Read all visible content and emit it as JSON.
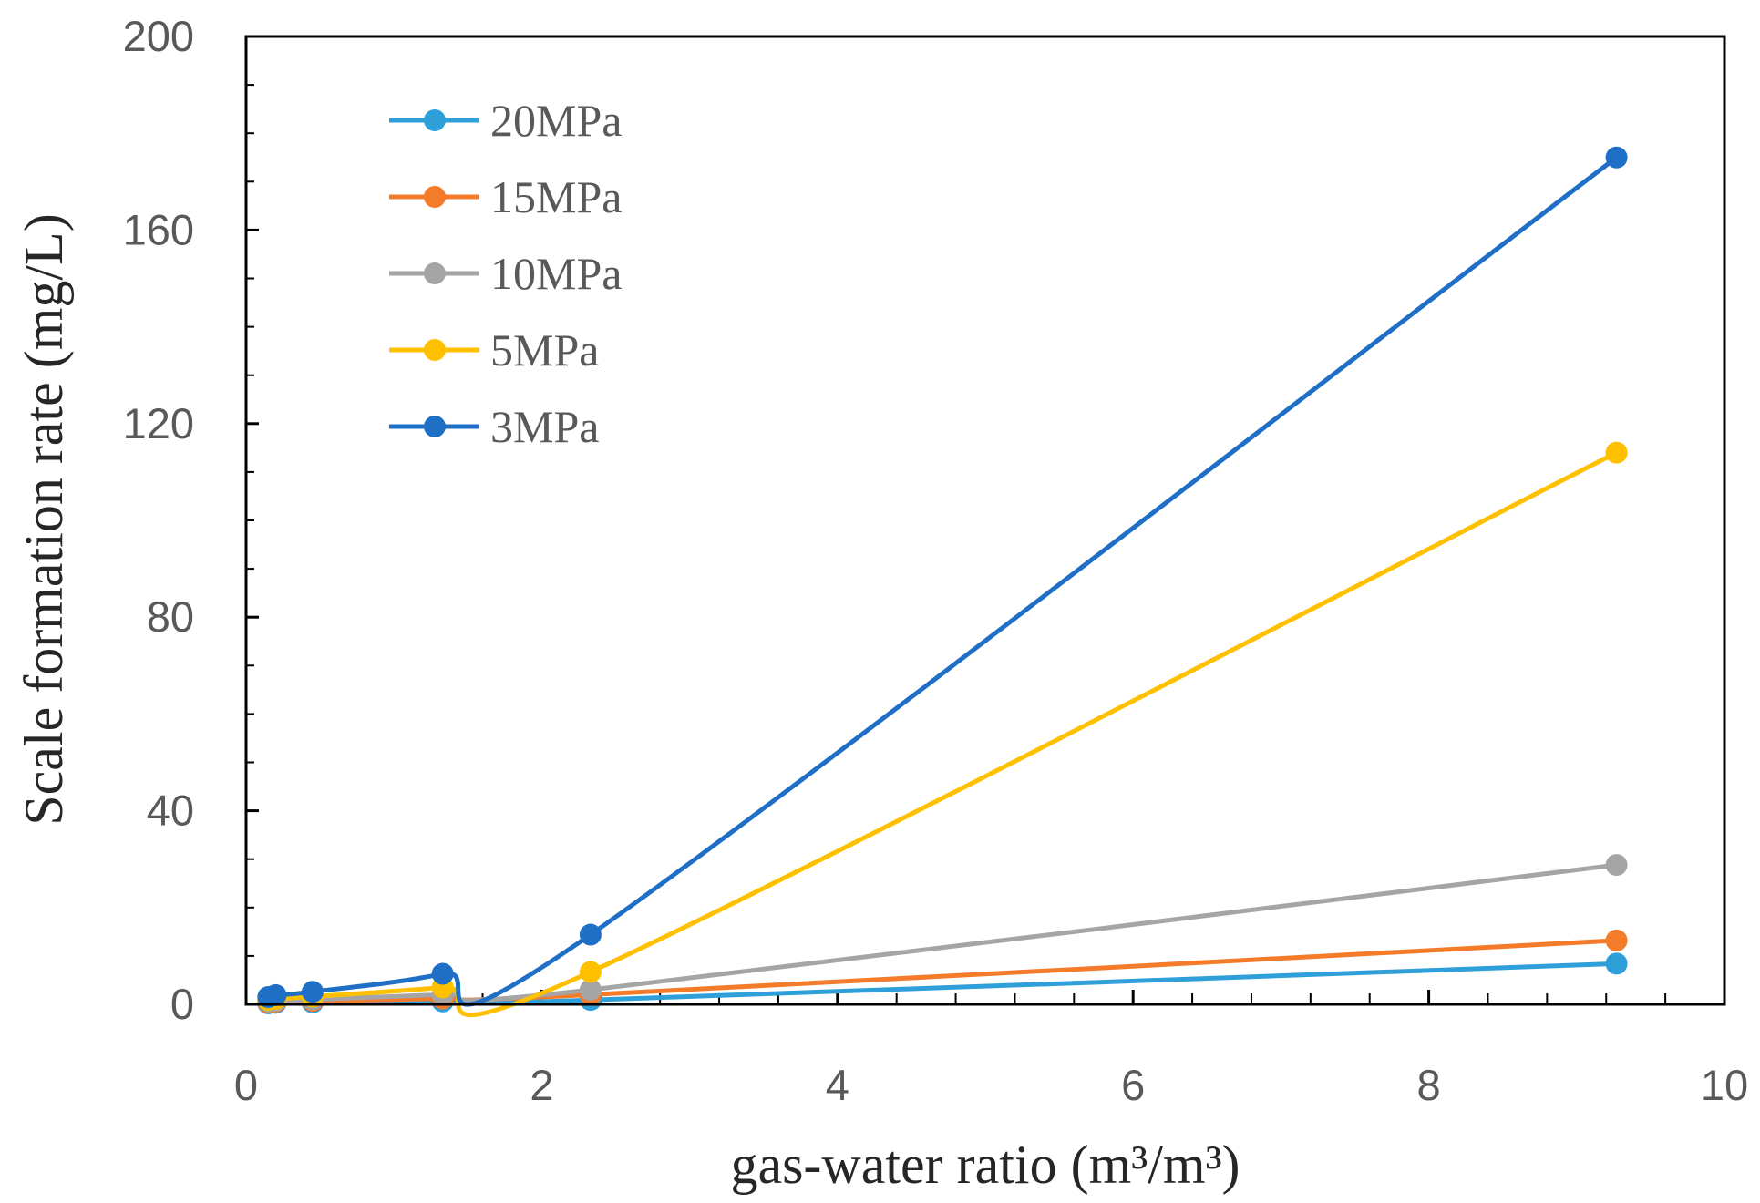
{
  "chart_data": {
    "type": "line",
    "title": "",
    "xlabel": "gas-water ratio (m³/m³)",
    "ylabel": "Scale formation rate (mg/L)",
    "xlim": [
      0,
      10
    ],
    "ylim": [
      0,
      200
    ],
    "xticks": [
      0,
      2,
      4,
      6,
      8,
      10
    ],
    "yticks": [
      0,
      40,
      80,
      120,
      160,
      200
    ],
    "x_minor_step": 0.4,
    "y_minor_step": 10,
    "grid": false,
    "smoothed": true,
    "legend_position": "top-left",
    "x": [
      0.15,
      0.2,
      0.45,
      1.33,
      2.33,
      9.27
    ],
    "series": [
      {
        "name": "20MPa",
        "color": "#2e9fd8",
        "values": [
          0.2,
          0.3,
          0.4,
          0.6,
          0.9,
          8.4
        ]
      },
      {
        "name": "15MPa",
        "color": "#f47b2a",
        "values": [
          0.4,
          0.5,
          0.7,
          1.2,
          2.0,
          13.2
        ]
      },
      {
        "name": "10MPa",
        "color": "#a5a5a5",
        "values": [
          0.6,
          0.7,
          1.0,
          2.0,
          3.0,
          28.8
        ]
      },
      {
        "name": "5MPa",
        "color": "#ffc000",
        "values": [
          0.9,
          1.1,
          1.6,
          3.5,
          6.7,
          114
        ]
      },
      {
        "name": "3MPa",
        "color": "#1f6fc6",
        "values": [
          1.5,
          1.9,
          2.6,
          6.3,
          14.4,
          175
        ]
      }
    ]
  }
}
